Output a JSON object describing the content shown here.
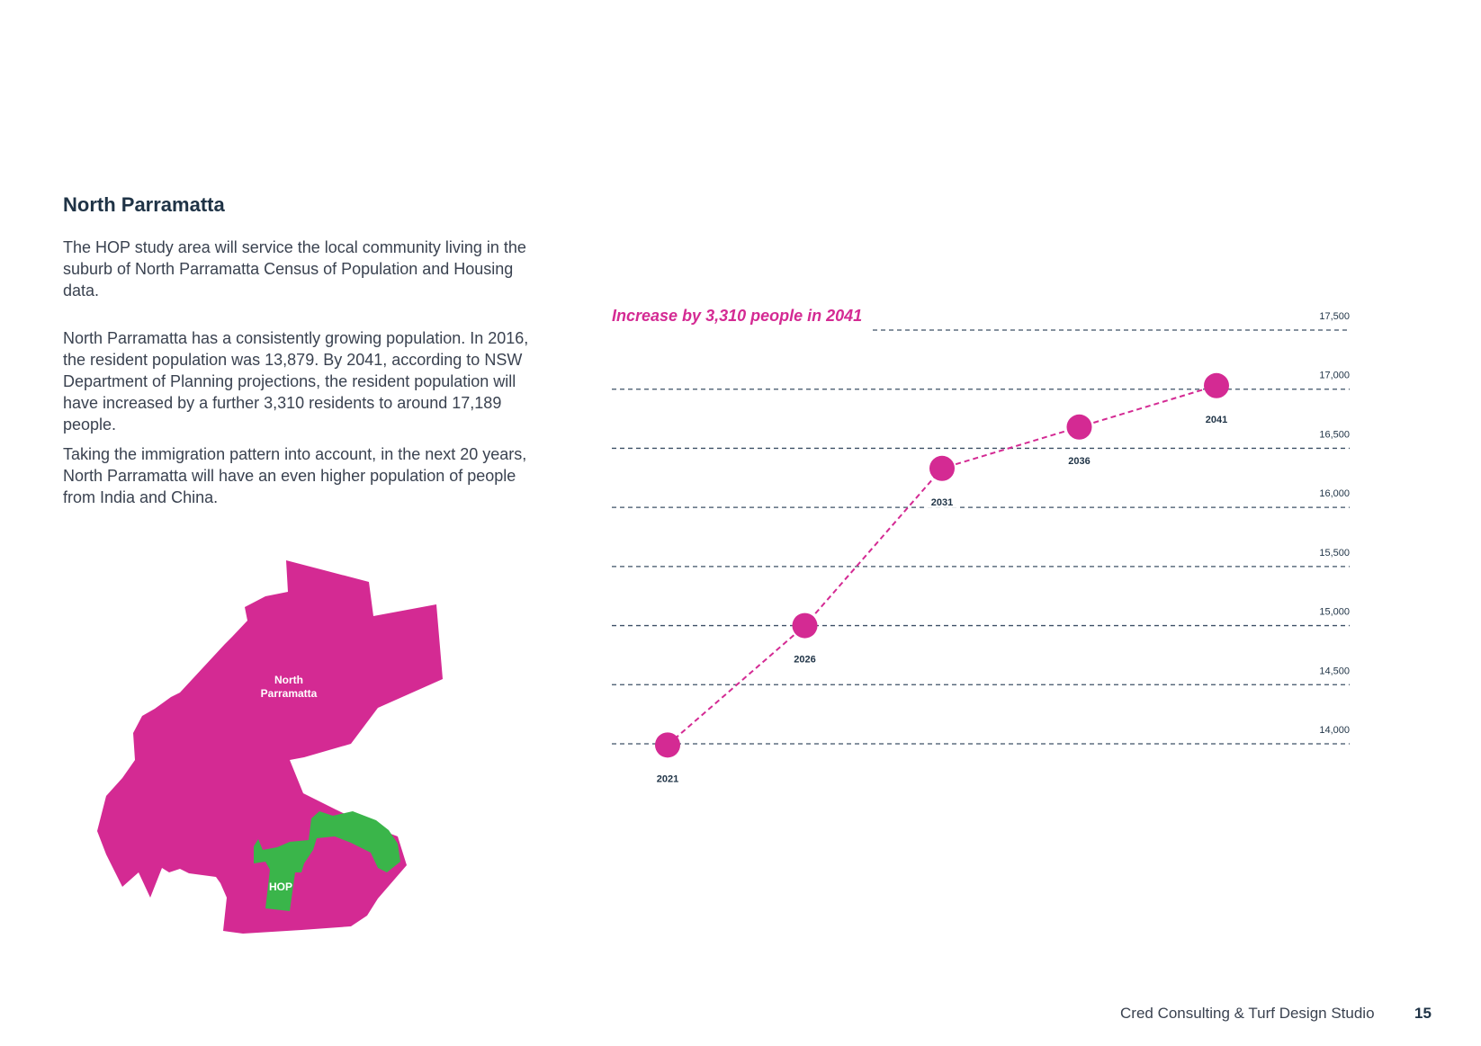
{
  "page": {
    "title": "North Parramatta",
    "paragraphs": [
      "The HOP study area will service the local community living in the suburb of North Parramatta Census of Population and Housing data.",
      "North Parramatta has a consistently growing population. In 2016, the resident population was 13,879. By 2041, according to NSW Department of Planning projections, the resident population will have increased by a further 3,310 residents to around 17,189 people.",
      "Taking the immigration pattern into account, in the next 20 years, North Parramatta will have an even higher population of people from India and China."
    ]
  },
  "map": {
    "suburb_label_line1": "North",
    "suburb_label_line2": "Parramatta",
    "hop_label": "HOP",
    "suburb_color": "#d42a93",
    "hop_color": "#3ab54a"
  },
  "chart_data": {
    "type": "line",
    "annotation": "Increase by 3,310 people in 2041",
    "x": [
      "2021",
      "2026",
      "2031",
      "2036",
      "2041"
    ],
    "series": [
      {
        "values": [
          13990,
          15000,
          16330,
          16680,
          17030
        ]
      }
    ],
    "y_ticks": [
      14000,
      14500,
      15000,
      15500,
      16000,
      16500,
      17000,
      17500
    ],
    "y_tick_labels": [
      "14,000",
      "14,500",
      "15,000",
      "15,500",
      "16,000",
      "16,500",
      "17,000",
      "17,500"
    ],
    "ylim": [
      14000,
      17500
    ],
    "grid": true,
    "line_color": "#d42a93",
    "grid_color": "#3d5066"
  },
  "footer": {
    "credit": "Cred Consulting & Turf Design Studio",
    "page_number": "15"
  }
}
